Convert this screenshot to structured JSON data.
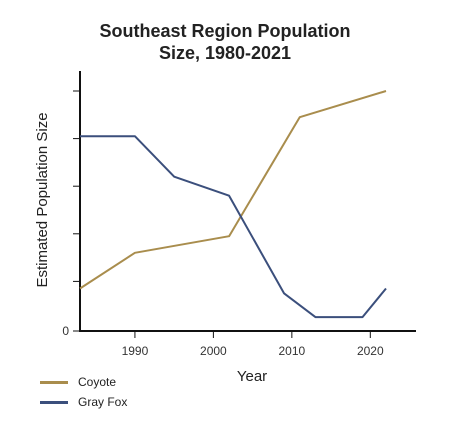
{
  "chart_data": {
    "type": "line",
    "title_lines": [
      "Southeast Region Population",
      "Size, 1980-2021"
    ],
    "xlabel": "Year",
    "ylabel": "Estimated Population Size",
    "xlim": [
      1983,
      2022
    ],
    "ylim": [
      0,
      10
    ],
    "x_ticks": [
      1990,
      2000,
      2010,
      2020
    ],
    "x_tick_labels": [
      "1990",
      "2000",
      "2010",
      "2020"
    ],
    "y_ticks": [
      0,
      2,
      4,
      6,
      8,
      10
    ],
    "y_tick_labels": [
      "0",
      "",
      "",
      "",
      "",
      ""
    ],
    "grid": false,
    "legend_position": "bottom-left",
    "series": [
      {
        "name": "Coyote",
        "color": "#a98d4d",
        "x": [
          1983,
          1990,
          2002,
          2011,
          2022
        ],
        "y": [
          1.7,
          3.2,
          3.9,
          8.9,
          10.0
        ]
      },
      {
        "name": "Gray Fox",
        "color": "#3b4f7c",
        "x": [
          1983,
          1990,
          1995,
          2002,
          2009,
          2013,
          2019,
          2022
        ],
        "y": [
          8.1,
          8.1,
          6.4,
          5.6,
          1.5,
          0.5,
          0.5,
          1.7
        ]
      }
    ]
  }
}
